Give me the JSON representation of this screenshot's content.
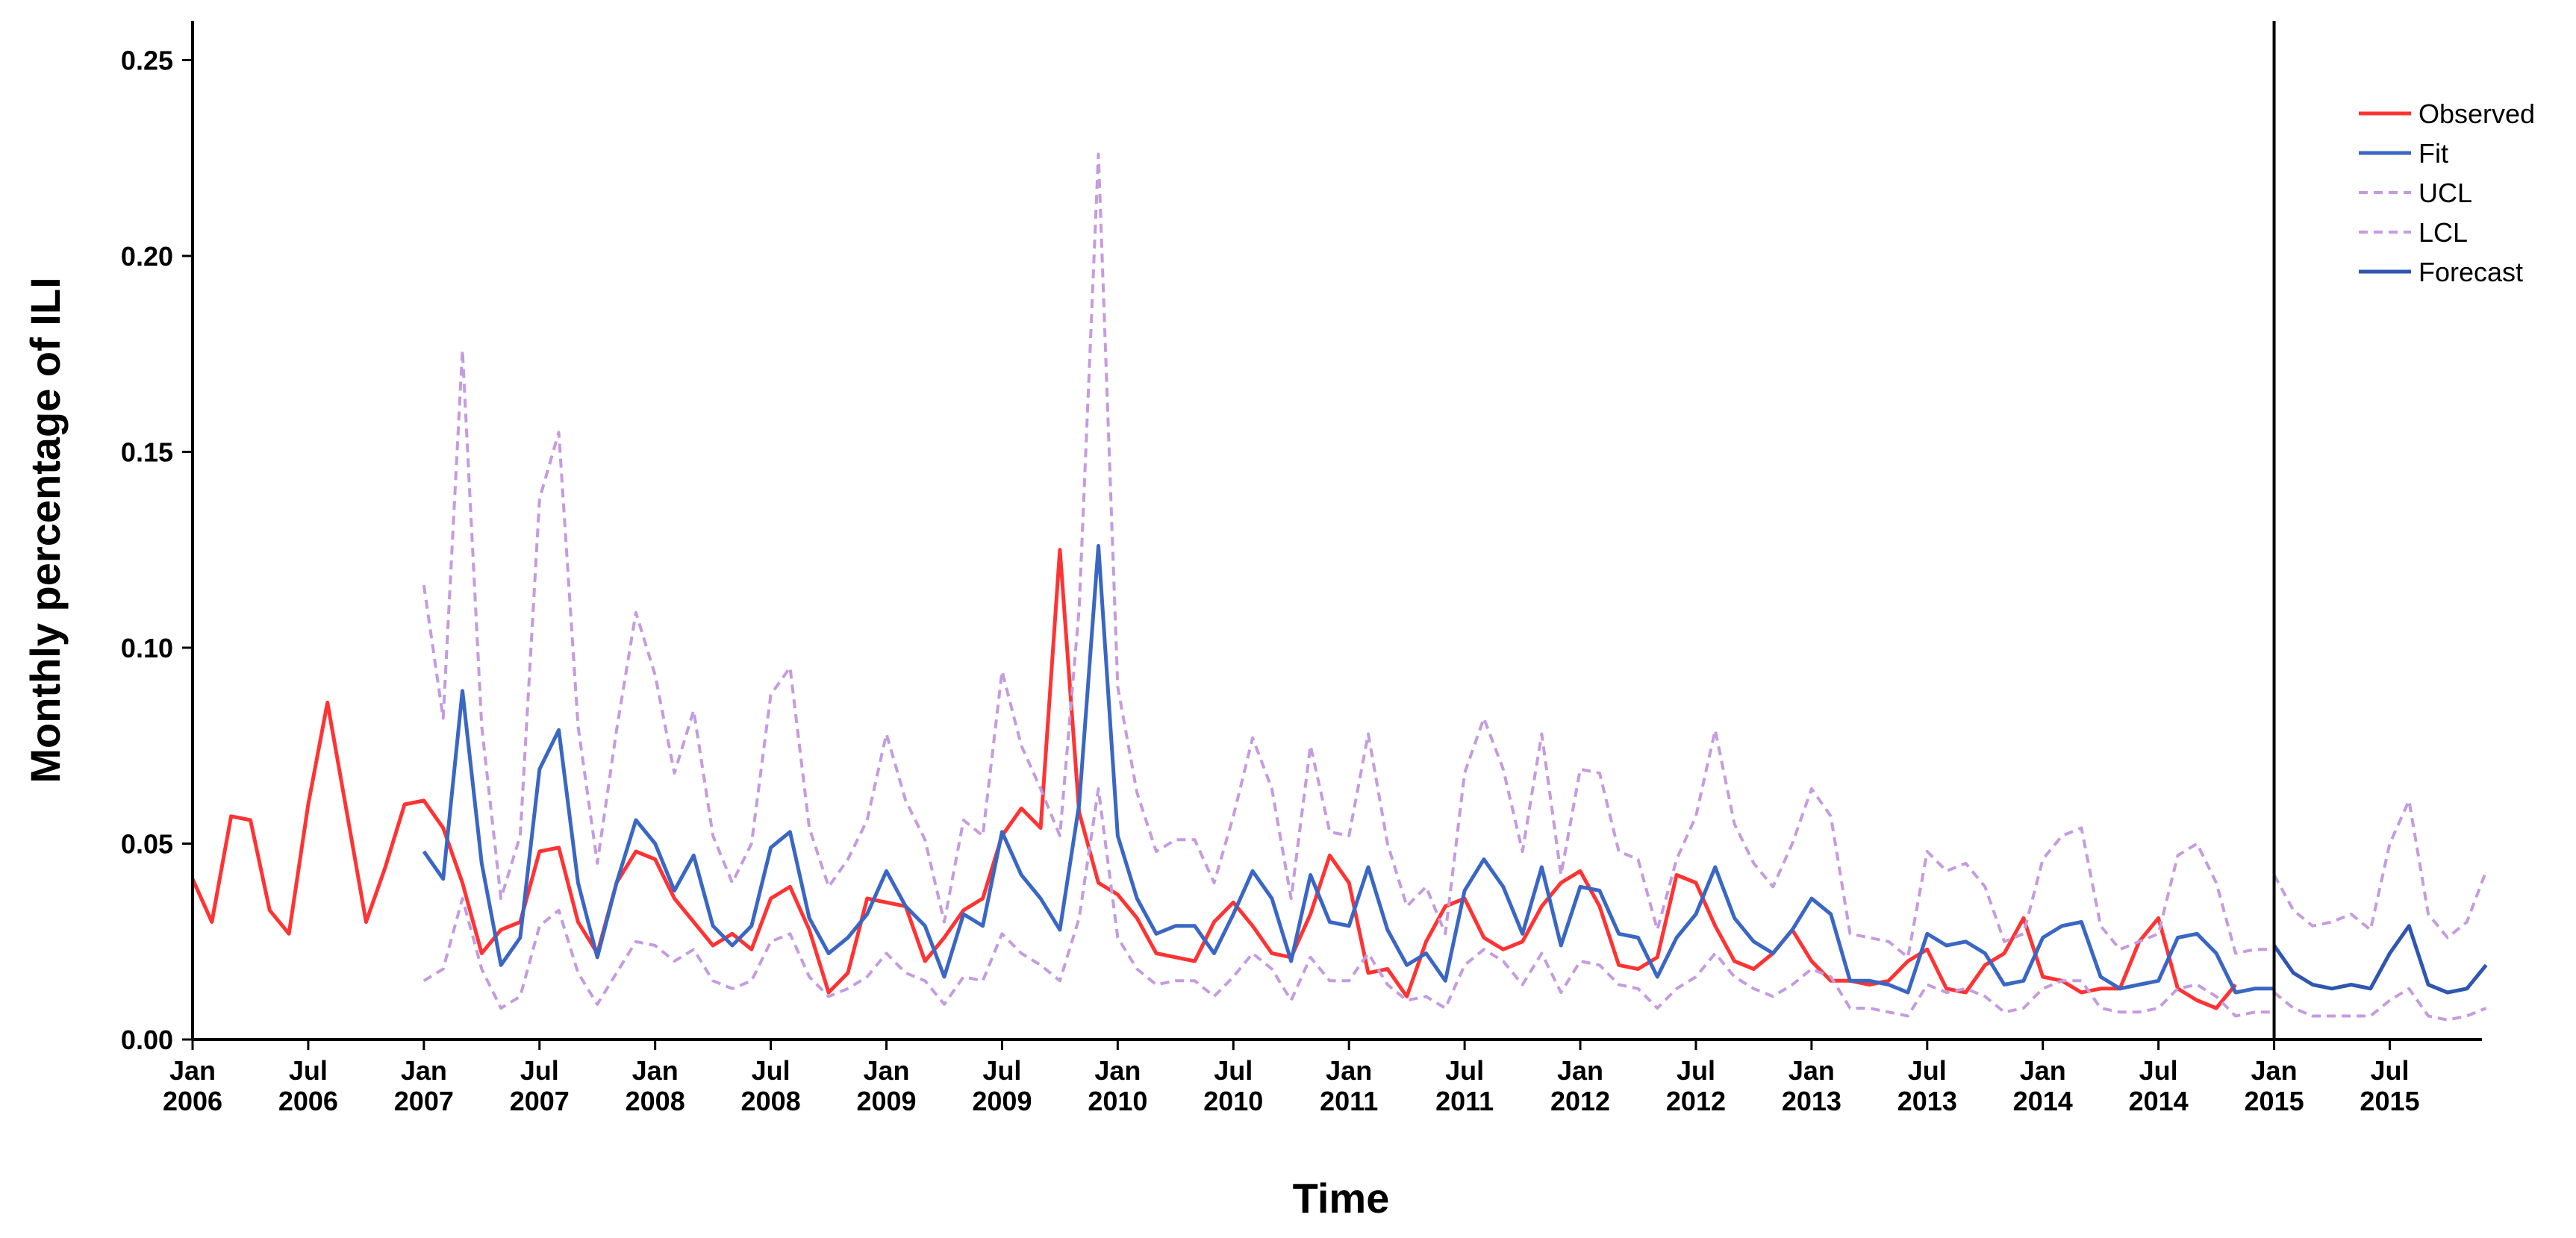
{
  "chart_data": {
    "type": "line",
    "title": "",
    "xlabel": "Time",
    "ylabel": "Monthly percentage of ILI",
    "ylim": [
      0,
      0.26
    ],
    "yticks": [
      "0.00",
      "0.05",
      "0.10",
      "0.15",
      "0.20",
      "0.25"
    ],
    "xticks": [
      [
        "Jan",
        "2006"
      ],
      [
        "Jul",
        "2006"
      ],
      [
        "Jan",
        "2007"
      ],
      [
        "Jul",
        "2007"
      ],
      [
        "Jan",
        "2008"
      ],
      [
        "Jul",
        "2008"
      ],
      [
        "Jan",
        "2009"
      ],
      [
        "Jul",
        "2009"
      ],
      [
        "Jan",
        "2010"
      ],
      [
        "Jul",
        "2010"
      ],
      [
        "Jan",
        "2011"
      ],
      [
        "Jul",
        "2011"
      ],
      [
        "Jan",
        "2012"
      ],
      [
        "Jul",
        "2012"
      ],
      [
        "Jan",
        "2013"
      ],
      [
        "Jul",
        "2013"
      ],
      [
        "Jan",
        "2014"
      ],
      [
        "Jul",
        "2014"
      ],
      [
        "Jan",
        "2015"
      ],
      [
        "Jul",
        "2015"
      ]
    ],
    "legend_position": "top-right",
    "forecast_start_month": 108,
    "series": [
      {
        "name": "Observed",
        "color": "#ff3333",
        "dash": "solid",
        "start_month": 0,
        "values": [
          0.041,
          0.03,
          0.057,
          0.056,
          0.033,
          0.027,
          0.06,
          0.086,
          0.058,
          0.03,
          0.044,
          0.06,
          0.061,
          0.054,
          0.04,
          0.022,
          0.028,
          0.03,
          0.048,
          0.049,
          0.03,
          0.022,
          0.04,
          0.048,
          0.046,
          0.036,
          0.03,
          0.024,
          0.027,
          0.023,
          0.036,
          0.039,
          0.028,
          0.012,
          0.017,
          0.036,
          0.035,
          0.034,
          0.02,
          0.026,
          0.033,
          0.036,
          0.052,
          0.059,
          0.054,
          0.125,
          0.058,
          0.04,
          0.037,
          0.031,
          0.022,
          0.021,
          0.02,
          0.03,
          0.035,
          0.029,
          0.022,
          0.021,
          0.032,
          0.047,
          0.04,
          0.017,
          0.018,
          0.011,
          0.025,
          0.034,
          0.036,
          0.026,
          0.023,
          0.025,
          0.034,
          0.04,
          0.043,
          0.034,
          0.019,
          0.018,
          0.021,
          0.042,
          0.04,
          0.029,
          0.02,
          0.018,
          0.022,
          0.028,
          0.02,
          0.015,
          0.015,
          0.014,
          0.015,
          0.02,
          0.023,
          0.013,
          0.012,
          0.019,
          0.022,
          0.031,
          0.016,
          0.015,
          0.012,
          0.013,
          0.013,
          0.025,
          0.031,
          0.013,
          0.01,
          0.008,
          0.014
        ]
      },
      {
        "name": "Fit",
        "color": "#3a66c4",
        "dash": "solid",
        "start_month": 12,
        "values": [
          0.048,
          0.041,
          0.089,
          0.045,
          0.019,
          0.026,
          0.069,
          0.079,
          0.04,
          0.021,
          0.04,
          0.056,
          0.05,
          0.038,
          0.047,
          0.029,
          0.024,
          0.029,
          0.049,
          0.053,
          0.031,
          0.022,
          0.026,
          0.032,
          0.043,
          0.034,
          0.029,
          0.016,
          0.032,
          0.029,
          0.053,
          0.042,
          0.036,
          0.028,
          0.06,
          0.126,
          0.052,
          0.036,
          0.027,
          0.029,
          0.029,
          0.022,
          0.032,
          0.043,
          0.036,
          0.02,
          0.042,
          0.03,
          0.029,
          0.044,
          0.028,
          0.019,
          0.022,
          0.015,
          0.038,
          0.046,
          0.039,
          0.027,
          0.044,
          0.024,
          0.039,
          0.038,
          0.027,
          0.026,
          0.016,
          0.026,
          0.032,
          0.044,
          0.031,
          0.025,
          0.022,
          0.028,
          0.036,
          0.032,
          0.015,
          0.015,
          0.014,
          0.012,
          0.027,
          0.024,
          0.025,
          0.022,
          0.014,
          0.015,
          0.026,
          0.029,
          0.03,
          0.016,
          0.013,
          0.014,
          0.015,
          0.026,
          0.027,
          0.022,
          0.012,
          0.013,
          0.013
        ]
      },
      {
        "name": "UCL",
        "color": "#c59be0",
        "dash": "dashed",
        "start_month": 12,
        "values": [
          0.116,
          0.082,
          0.176,
          0.08,
          0.036,
          0.052,
          0.138,
          0.155,
          0.08,
          0.045,
          0.079,
          0.109,
          0.093,
          0.068,
          0.084,
          0.052,
          0.04,
          0.05,
          0.088,
          0.095,
          0.054,
          0.039,
          0.046,
          0.056,
          0.078,
          0.061,
          0.051,
          0.03,
          0.056,
          0.052,
          0.094,
          0.075,
          0.064,
          0.052,
          0.11,
          0.226,
          0.09,
          0.063,
          0.048,
          0.051,
          0.051,
          0.04,
          0.057,
          0.077,
          0.064,
          0.036,
          0.075,
          0.053,
          0.052,
          0.078,
          0.05,
          0.034,
          0.039,
          0.027,
          0.068,
          0.082,
          0.069,
          0.048,
          0.078,
          0.042,
          0.069,
          0.068,
          0.048,
          0.046,
          0.028,
          0.046,
          0.057,
          0.079,
          0.055,
          0.045,
          0.039,
          0.05,
          0.064,
          0.057,
          0.027,
          0.026,
          0.025,
          0.021,
          0.048,
          0.043,
          0.045,
          0.039,
          0.025,
          0.027,
          0.046,
          0.052,
          0.054,
          0.029,
          0.023,
          0.025,
          0.027,
          0.047,
          0.05,
          0.04,
          0.022,
          0.023,
          0.023
        ]
      },
      {
        "name": "LCL",
        "color": "#c59be0",
        "dash": "dashed",
        "start_month": 12,
        "values": [
          0.015,
          0.018,
          0.036,
          0.018,
          0.008,
          0.011,
          0.029,
          0.033,
          0.017,
          0.009,
          0.017,
          0.025,
          0.024,
          0.02,
          0.023,
          0.015,
          0.013,
          0.015,
          0.025,
          0.027,
          0.016,
          0.011,
          0.013,
          0.016,
          0.022,
          0.017,
          0.015,
          0.009,
          0.016,
          0.015,
          0.027,
          0.022,
          0.019,
          0.015,
          0.031,
          0.064,
          0.026,
          0.018,
          0.014,
          0.015,
          0.015,
          0.011,
          0.016,
          0.022,
          0.018,
          0.01,
          0.021,
          0.015,
          0.015,
          0.022,
          0.014,
          0.01,
          0.011,
          0.008,
          0.019,
          0.023,
          0.02,
          0.014,
          0.022,
          0.012,
          0.02,
          0.019,
          0.014,
          0.013,
          0.008,
          0.013,
          0.016,
          0.022,
          0.016,
          0.013,
          0.011,
          0.014,
          0.018,
          0.016,
          0.008,
          0.008,
          0.007,
          0.006,
          0.014,
          0.012,
          0.013,
          0.011,
          0.007,
          0.008,
          0.013,
          0.015,
          0.015,
          0.008,
          0.007,
          0.007,
          0.008,
          0.013,
          0.014,
          0.011,
          0.006,
          0.007,
          0.007
        ]
      },
      {
        "name": "Forecast",
        "color": "#2f56b0",
        "dash": "solid",
        "start_month": 108,
        "values": [
          0.024,
          0.017,
          0.014,
          0.013,
          0.014,
          0.013,
          0.022,
          0.029,
          0.014,
          0.012,
          0.013,
          0.019
        ]
      },
      {
        "name": "UCL forecast",
        "legend": false,
        "color": "#c59be0",
        "dash": "dashed",
        "start_month": 108,
        "values": [
          0.042,
          0.033,
          0.029,
          0.03,
          0.032,
          0.028,
          0.05,
          0.061,
          0.032,
          0.026,
          0.03,
          0.043
        ]
      },
      {
        "name": "LCL forecast",
        "legend": false,
        "color": "#c59be0",
        "dash": "dashed",
        "start_month": 108,
        "values": [
          0.012,
          0.008,
          0.006,
          0.006,
          0.006,
          0.006,
          0.01,
          0.013,
          0.006,
          0.005,
          0.006,
          0.008
        ]
      }
    ]
  }
}
